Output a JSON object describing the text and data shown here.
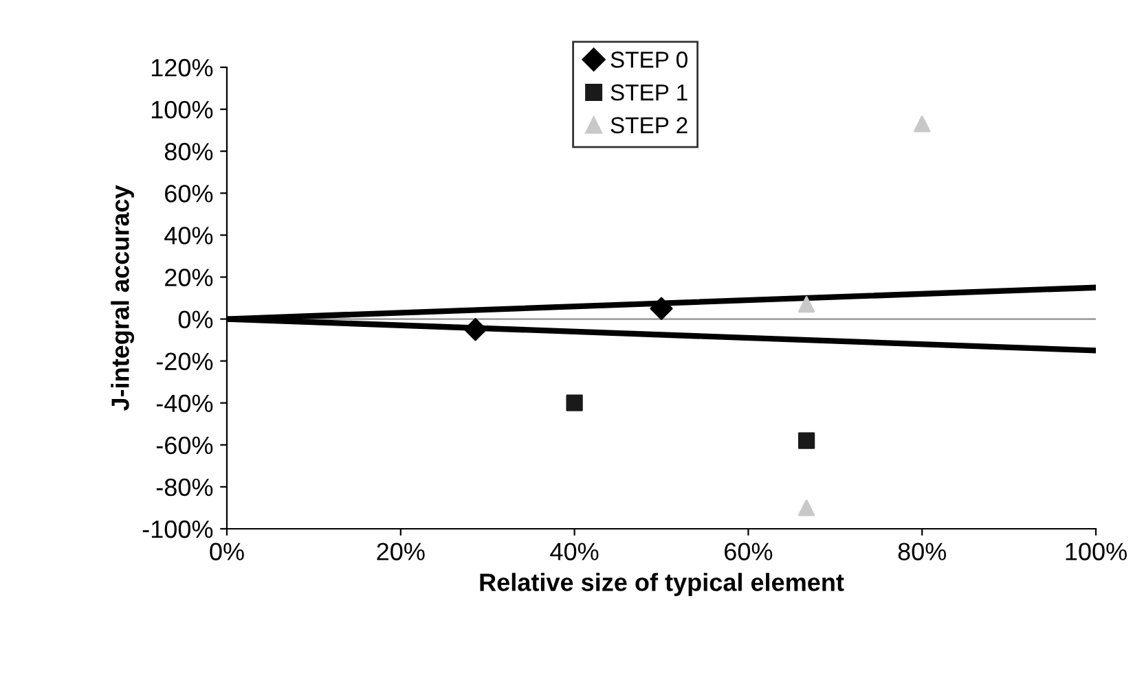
{
  "chart_data": {
    "type": "scatter",
    "xlabel": "Relative size of typical element",
    "ylabel": "J-integral accuracy",
    "xlim": [
      0,
      100
    ],
    "ylim": [
      -100,
      120
    ],
    "xticks": [
      {
        "value": 0,
        "label": "0%"
      },
      {
        "value": 20,
        "label": "20%"
      },
      {
        "value": 40,
        "label": "40%"
      },
      {
        "value": 60,
        "label": "60%"
      },
      {
        "value": 80,
        "label": "80%"
      },
      {
        "value": 100,
        "label": "100%"
      }
    ],
    "yticks": [
      {
        "value": -100,
        "label": "-100%"
      },
      {
        "value": -80,
        "label": "-80%"
      },
      {
        "value": -60,
        "label": "-60%"
      },
      {
        "value": -40,
        "label": "-40%"
      },
      {
        "value": -20,
        "label": "-20%"
      },
      {
        "value": 0,
        "label": "0%"
      },
      {
        "value": 20,
        "label": "20%"
      },
      {
        "value": 40,
        "label": "40%"
      },
      {
        "value": 60,
        "label": "60%"
      },
      {
        "value": 80,
        "label": "80%"
      },
      {
        "value": 100,
        "label": "100%"
      },
      {
        "value": 120,
        "label": "120%"
      }
    ],
    "grid": false,
    "legend": "top",
    "ref_lines": [
      {
        "axis": "y",
        "value": 0,
        "color": "#a0a0a0"
      }
    ],
    "series": [
      {
        "type": "line",
        "color": "#000000",
        "x": [
          0,
          100
        ],
        "values": [
          0,
          15
        ],
        "marker": "none"
      },
      {
        "type": "line",
        "color": "#000000",
        "x": [
          0,
          100
        ],
        "values": [
          0,
          -15
        ],
        "marker": "none"
      },
      {
        "name": "STEP 0",
        "color": "#000000",
        "marker": "diamond",
        "x": [
          28.6,
          50
        ],
        "values": [
          -5,
          5
        ]
      },
      {
        "name": "STEP 1",
        "color": "#1a1a1a",
        "marker": "square",
        "x": [
          40,
          66.7
        ],
        "values": [
          -40,
          -58
        ]
      },
      {
        "name": "STEP 2",
        "color": "#c8c8c8",
        "marker": "triangle",
        "x": [
          80,
          66.7,
          66.7
        ],
        "values": [
          93,
          7,
          -90
        ]
      }
    ]
  }
}
